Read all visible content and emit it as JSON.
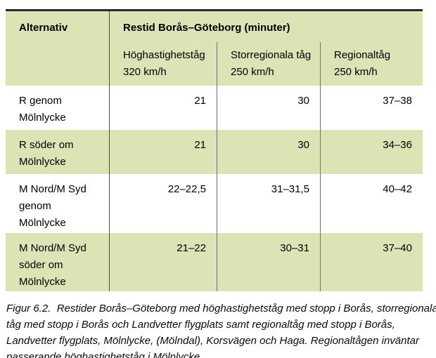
{
  "table": {
    "colors": {
      "header_bg": "#dde3b5",
      "alt_row_bg": "#dde3b5",
      "row_bg": "#ffffff",
      "top_border": "#282828",
      "divider": "#707070"
    },
    "header": {
      "alternativ_label": "Alternativ",
      "title": "Restid Borås–Göteborg (minuter)",
      "subcolumns": [
        {
          "name": "Höghastighetståg",
          "speed": "320 km/h"
        },
        {
          "name": "Storregionala tåg",
          "speed": "250 km/h"
        },
        {
          "name": "Regionaltåg",
          "speed": "250 km/h"
        }
      ]
    },
    "rows": [
      {
        "label_lines": [
          "R genom",
          "Mölnlycke"
        ],
        "values": [
          "21",
          "30",
          "37–38"
        ]
      },
      {
        "label_lines": [
          "R söder om",
          "Mölnlycke"
        ],
        "values": [
          "21",
          "30",
          "34–36"
        ]
      },
      {
        "label_lines": [
          "M Nord/M Syd",
          "genom",
          "Mölnlycke"
        ],
        "values": [
          "22–22,5",
          "31–31,5",
          "40–42"
        ]
      },
      {
        "label_lines": [
          "M Nord/M Syd",
          "söder om",
          "Mölnlycke"
        ],
        "values": [
          "21–22",
          "30–31",
          "37–40"
        ]
      }
    ]
  },
  "caption": {
    "figure_number": "Figur 6.2.",
    "lines": [
      "Figur 6.2.  Restider Borås–Göteborg med höghastighetståg med stopp i Borås, storregionala",
      "tåg med stopp i Borås och Landvetter flygplats samt regionaltåg med stopp i Borås,",
      "Landvetter flygplats, Mölnlycke, (Mölndal), Korsvägen och Haga. Regionaltågen inväntar",
      "passerande höghastighetståg i Mölnlycke."
    ]
  }
}
